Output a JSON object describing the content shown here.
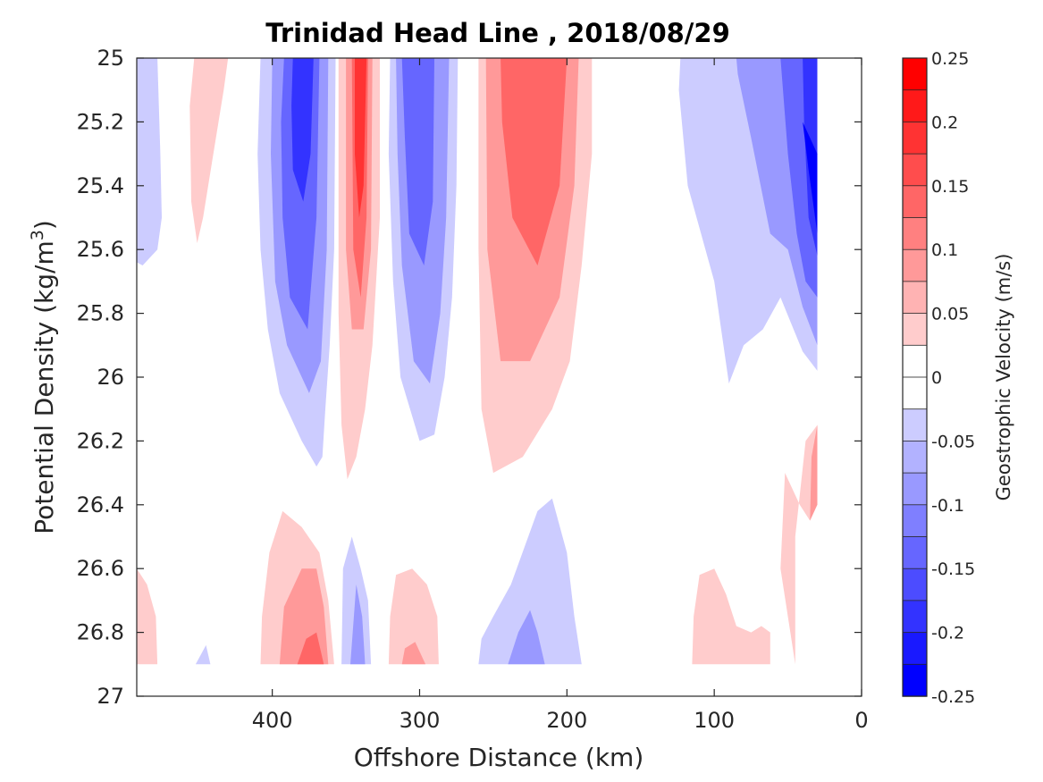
{
  "chart_data": {
    "type": "heatmap",
    "subtype": "filled-contour",
    "title": "Trinidad Head Line , 2018/08/29",
    "xlabel": "Offshore Distance (km)",
    "ylabel_main": "Potential Density (kg/m",
    "ylabel_sup": "3",
    "ylabel_close": ")",
    "xlim": [
      492,
      0
    ],
    "x_reversed": true,
    "ylim": [
      25,
      27
    ],
    "y_reversed": true,
    "x_ticks": [
      400,
      300,
      200,
      100,
      0
    ],
    "x_tick_labels": [
      "400",
      "300",
      "200",
      "100",
      "0"
    ],
    "y_ticks": [
      25,
      25.2,
      25.4,
      25.6,
      25.8,
      26,
      26.2,
      26.4,
      26.6,
      26.8,
      27
    ],
    "y_tick_labels": [
      "25",
      "25.2",
      "25.4",
      "25.6",
      "25.8",
      "26",
      "26.2",
      "26.4",
      "26.6",
      "26.8",
      "27"
    ],
    "colorbar": {
      "label": "Geostrophic Velocity (m/s)",
      "min": -0.25,
      "max": 0.25,
      "step": 0.025,
      "ticks": [
        0.25,
        0.2,
        0.15,
        0.1,
        0.05,
        0,
        -0.05,
        -0.1,
        -0.15,
        -0.2,
        -0.25
      ],
      "tick_labels": [
        "0.25",
        "0.2",
        "0.15",
        "0.1",
        "0.05",
        "0",
        "-0.05",
        "-0.1",
        "-0.15",
        "-0.2",
        "-0.25"
      ]
    },
    "colors": {
      "positive": "#ff0000",
      "negative": "#0000ff",
      "zero": "#ffffff",
      "axis": "#262626"
    },
    "features": [
      {
        "sign": "negative",
        "peak": -0.05,
        "polygon": [
          [
            492,
            25
          ],
          [
            478,
            25
          ],
          [
            476,
            25.3
          ],
          [
            475,
            25.5
          ],
          [
            478,
            25.6
          ],
          [
            488,
            25.65
          ],
          [
            492,
            25.64
          ]
        ]
      },
      {
        "sign": "positive",
        "peak": 0.05,
        "polygon": [
          [
            453,
            25
          ],
          [
            430,
            25
          ],
          [
            433,
            25.1
          ],
          [
            440,
            25.3
          ],
          [
            447,
            25.5
          ],
          [
            451,
            25.58
          ],
          [
            455,
            25.45
          ],
          [
            456,
            25.15
          ]
        ]
      },
      {
        "sign": "negative",
        "peak": -0.05,
        "polygon": [
          [
            408,
            25
          ],
          [
            357,
            25
          ],
          [
            358,
            25.6
          ],
          [
            361,
            25.9
          ],
          [
            364,
            26.1
          ],
          [
            366,
            26.25
          ],
          [
            370,
            26.28
          ],
          [
            380,
            26.2
          ],
          [
            395,
            26.05
          ],
          [
            403,
            25.85
          ],
          [
            408,
            25.6
          ],
          [
            410,
            25.3
          ]
        ]
      },
      {
        "sign": "negative",
        "peak": -0.1,
        "polygon": [
          [
            400,
            25
          ],
          [
            362,
            25
          ],
          [
            363,
            25.6
          ],
          [
            367,
            25.95
          ],
          [
            375,
            26.05
          ],
          [
            390,
            25.9
          ],
          [
            398,
            25.7
          ],
          [
            401,
            25.3
          ]
        ]
      },
      {
        "sign": "negative",
        "peak": -0.15,
        "polygon": [
          [
            392,
            25
          ],
          [
            368,
            25
          ],
          [
            370,
            25.5
          ],
          [
            376,
            25.85
          ],
          [
            388,
            25.75
          ],
          [
            393,
            25.5
          ],
          [
            394,
            25.2
          ]
        ]
      },
      {
        "sign": "negative",
        "peak": -0.2,
        "polygon": [
          [
            386,
            25
          ],
          [
            372,
            25
          ],
          [
            374,
            25.3
          ],
          [
            379,
            25.45
          ],
          [
            386,
            25.35
          ],
          [
            387,
            25.15
          ]
        ]
      },
      {
        "sign": "positive",
        "peak": 0.05,
        "polygon": [
          [
            355,
            25
          ],
          [
            327,
            25
          ],
          [
            327,
            25.5
          ],
          [
            332,
            25.9
          ],
          [
            337,
            26.1
          ],
          [
            343,
            26.25
          ],
          [
            349,
            26.32
          ],
          [
            353,
            26.15
          ],
          [
            355,
            25.8
          ]
        ]
      },
      {
        "sign": "positive",
        "peak": 0.1,
        "polygon": [
          [
            350,
            25
          ],
          [
            332,
            25
          ],
          [
            333,
            25.6
          ],
          [
            338,
            25.85
          ],
          [
            346,
            25.85
          ],
          [
            350,
            25.6
          ]
        ]
      },
      {
        "sign": "positive",
        "peak": 0.15,
        "polygon": [
          [
            346,
            25
          ],
          [
            335,
            25
          ],
          [
            336,
            25.5
          ],
          [
            340,
            25.75
          ],
          [
            345,
            25.6
          ]
        ]
      },
      {
        "sign": "positive",
        "peak": 0.2,
        "polygon": [
          [
            344,
            25
          ],
          [
            336,
            25
          ],
          [
            338,
            25.4
          ],
          [
            341,
            25.5
          ],
          [
            344,
            25.3
          ]
        ]
      },
      {
        "sign": "negative",
        "peak": -0.05,
        "polygon": [
          [
            320,
            25
          ],
          [
            274,
            25
          ],
          [
            275,
            25.4
          ],
          [
            278,
            25.75
          ],
          [
            283,
            26.0
          ],
          [
            290,
            26.18
          ],
          [
            300,
            26.2
          ],
          [
            313,
            26.0
          ],
          [
            318,
            25.7
          ],
          [
            321,
            25.3
          ]
        ]
      },
      {
        "sign": "negative",
        "peak": -0.1,
        "polygon": [
          [
            316,
            25
          ],
          [
            280,
            25
          ],
          [
            282,
            25.5
          ],
          [
            286,
            25.8
          ],
          [
            293,
            26.02
          ],
          [
            304,
            25.95
          ],
          [
            312,
            25.65
          ],
          [
            315,
            25.3
          ]
        ]
      },
      {
        "sign": "negative",
        "peak": -0.15,
        "polygon": [
          [
            312,
            25
          ],
          [
            290,
            25
          ],
          [
            291,
            25.45
          ],
          [
            297,
            25.65
          ],
          [
            307,
            25.55
          ],
          [
            310,
            25.25
          ]
        ]
      },
      {
        "sign": "positive",
        "peak": 0.05,
        "polygon": [
          [
            260,
            25
          ],
          [
            183,
            25
          ],
          [
            183,
            25.3
          ],
          [
            190,
            25.65
          ],
          [
            198,
            25.95
          ],
          [
            210,
            26.1
          ],
          [
            230,
            26.25
          ],
          [
            250,
            26.3
          ],
          [
            258,
            26.1
          ],
          [
            260,
            25.6
          ]
        ]
      },
      {
        "sign": "positive",
        "peak": 0.1,
        "polygon": [
          [
            255,
            25
          ],
          [
            192,
            25
          ],
          [
            195,
            25.4
          ],
          [
            205,
            25.75
          ],
          [
            225,
            25.95
          ],
          [
            245,
            25.95
          ],
          [
            254,
            25.6
          ]
        ]
      },
      {
        "sign": "positive",
        "peak": 0.15,
        "polygon": [
          [
            245,
            25
          ],
          [
            200,
            25
          ],
          [
            205,
            25.4
          ],
          [
            220,
            25.65
          ],
          [
            237,
            25.5
          ],
          [
            244,
            25.2
          ]
        ]
      },
      {
        "sign": "negative",
        "peak": -0.05,
        "polygon": [
          [
            123,
            25
          ],
          [
            30,
            25
          ],
          [
            30,
            25.98
          ],
          [
            40,
            25.92
          ],
          [
            55,
            25.75
          ],
          [
            67,
            25.85
          ],
          [
            80,
            25.9
          ],
          [
            90,
            26.02
          ],
          [
            100,
            25.7
          ],
          [
            118,
            25.4
          ],
          [
            124,
            25.1
          ]
        ]
      },
      {
        "sign": "negative",
        "peak": -0.1,
        "polygon": [
          [
            85,
            25
          ],
          [
            30,
            25
          ],
          [
            30,
            25.9
          ],
          [
            40,
            25.78
          ],
          [
            50,
            25.6
          ],
          [
            62,
            25.55
          ],
          [
            75,
            25.25
          ],
          [
            84,
            25.05
          ]
        ]
      },
      {
        "sign": "negative",
        "peak": -0.15,
        "polygon": [
          [
            55,
            25
          ],
          [
            30,
            25
          ],
          [
            30,
            25.75
          ],
          [
            38,
            25.7
          ],
          [
            44,
            25.55
          ],
          [
            50,
            25.3
          ]
        ]
      },
      {
        "sign": "negative",
        "peak": -0.2,
        "polygon": [
          [
            40,
            25
          ],
          [
            30,
            25
          ],
          [
            30,
            25.62
          ],
          [
            36,
            25.5
          ],
          [
            39,
            25.2
          ]
        ]
      },
      {
        "sign": "negative",
        "peak": -0.25,
        "polygon": [
          [
            40,
            25.2
          ],
          [
            30,
            25.3
          ],
          [
            30,
            25.55
          ],
          [
            36,
            25.35
          ]
        ]
      },
      {
        "sign": "positive",
        "peak": 0.05,
        "polygon": [
          [
            45,
            26.9
          ],
          [
            55,
            26.6
          ],
          [
            52,
            26.3
          ],
          [
            42,
            26.4
          ],
          [
            35,
            26.45
          ],
          [
            30,
            26.3
          ],
          [
            30,
            26.15
          ],
          [
            38,
            26.2
          ],
          [
            45,
            26.5
          ]
        ]
      },
      {
        "sign": "positive",
        "peak": 0.1,
        "polygon": [
          [
            30,
            26.4
          ],
          [
            30,
            26.15
          ],
          [
            34,
            26.25
          ],
          [
            35,
            26.45
          ]
        ]
      },
      {
        "sign": "positive",
        "peak": 0.05,
        "polygon": [
          [
            492,
            26.6
          ],
          [
            492,
            26.9
          ],
          [
            478,
            26.9
          ],
          [
            479,
            26.75
          ],
          [
            485,
            26.65
          ]
        ]
      },
      {
        "sign": "negative",
        "peak": -0.05,
        "polygon": [
          [
            452,
            26.9
          ],
          [
            442,
            26.9
          ],
          [
            445,
            26.84
          ]
        ]
      },
      {
        "sign": "positive",
        "peak": 0.05,
        "polygon": [
          [
            408,
            26.9
          ],
          [
            358,
            26.9
          ],
          [
            362,
            26.7
          ],
          [
            368,
            26.55
          ],
          [
            380,
            26.47
          ],
          [
            393,
            26.42
          ],
          [
            402,
            26.55
          ],
          [
            407,
            26.75
          ]
        ]
      },
      {
        "sign": "positive",
        "peak": 0.1,
        "polygon": [
          [
            395,
            26.9
          ],
          [
            362,
            26.9
          ],
          [
            365,
            26.72
          ],
          [
            370,
            26.6
          ],
          [
            380,
            26.6
          ],
          [
            392,
            26.72
          ]
        ]
      },
      {
        "sign": "positive",
        "peak": 0.15,
        "polygon": [
          [
            383,
            26.9
          ],
          [
            365,
            26.9
          ],
          [
            370,
            26.8
          ],
          [
            377,
            26.82
          ]
        ]
      },
      {
        "sign": "negative",
        "peak": -0.05,
        "polygon": [
          [
            353,
            26.9
          ],
          [
            333,
            26.9
          ],
          [
            335,
            26.7
          ],
          [
            340,
            26.6
          ],
          [
            346,
            26.5
          ],
          [
            352,
            26.6
          ]
        ]
      },
      {
        "sign": "negative",
        "peak": -0.1,
        "polygon": [
          [
            347,
            26.9
          ],
          [
            337,
            26.9
          ],
          [
            339,
            26.75
          ],
          [
            343,
            26.65
          ]
        ]
      },
      {
        "sign": "positive",
        "peak": 0.05,
        "polygon": [
          [
            321,
            26.9
          ],
          [
            287,
            26.9
          ],
          [
            288,
            26.75
          ],
          [
            295,
            26.65
          ],
          [
            305,
            26.6
          ],
          [
            316,
            26.62
          ],
          [
            320,
            26.75
          ]
        ]
      },
      {
        "sign": "positive",
        "peak": 0.1,
        "polygon": [
          [
            312,
            26.9
          ],
          [
            296,
            26.9
          ],
          [
            303,
            26.83
          ],
          [
            310,
            26.85
          ]
        ]
      },
      {
        "sign": "negative",
        "peak": -0.05,
        "polygon": [
          [
            260,
            26.9
          ],
          [
            190,
            26.9
          ],
          [
            195,
            26.75
          ],
          [
            200,
            26.55
          ],
          [
            210,
            26.38
          ],
          [
            220,
            26.42
          ],
          [
            238,
            26.65
          ],
          [
            250,
            26.75
          ],
          [
            258,
            26.82
          ]
        ]
      },
      {
        "sign": "negative",
        "peak": -0.1,
        "polygon": [
          [
            240,
            26.9
          ],
          [
            215,
            26.9
          ],
          [
            220,
            26.8
          ],
          [
            225,
            26.73
          ],
          [
            233,
            26.8
          ]
        ]
      },
      {
        "sign": "positive",
        "peak": 0.05,
        "polygon": [
          [
            115,
            26.9
          ],
          [
            62,
            26.9
          ],
          [
            62,
            26.8
          ],
          [
            68,
            26.78
          ],
          [
            75,
            26.8
          ],
          [
            85,
            26.78
          ],
          [
            92,
            26.68
          ],
          [
            100,
            26.6
          ],
          [
            110,
            26.62
          ],
          [
            114,
            26.75
          ]
        ]
      }
    ]
  }
}
